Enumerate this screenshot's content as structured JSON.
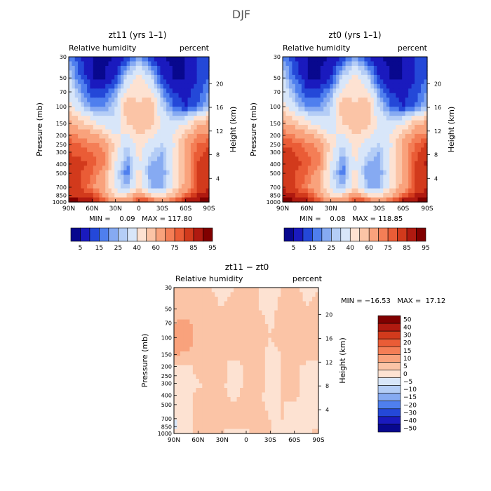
{
  "figure": {
    "title": "DJF"
  },
  "colors": {
    "cb_full": [
      "#08088e",
      "#1a1abe",
      "#2448d8",
      "#4f7fee",
      "#86aaf2",
      "#b4cdf6",
      "#d8e6f9",
      "#fde2d2",
      "#fbc4a6",
      "#f9a27c",
      "#f47e56",
      "#ea5c36",
      "#d23a1c",
      "#b01a10",
      "#800000"
    ],
    "cb_diff": [
      "#800000",
      "#b01a10",
      "#d23a1c",
      "#ea5c36",
      "#f47e56",
      "#f9a27c",
      "#fbc4a6",
      "#fde2d2",
      "#d8e6f9",
      "#b4cdf6",
      "#86aaf2",
      "#4f7fee",
      "#2448d8",
      "#1a1abe",
      "#08088e"
    ]
  },
  "panels": {
    "zt11": {
      "title": "zt11 (yrs 1–1)",
      "variable_label": "Relative humidity",
      "units_label": "percent",
      "stats_label": "MIN =    0.09   MAX = 117.80"
    },
    "zt0": {
      "title": "zt0 (yrs 1–1)",
      "variable_label": "Relative humidity",
      "units_label": "percent",
      "stats_label": "MIN =    0.08   MAX = 118.85"
    },
    "diff": {
      "title": "zt11 − zt0",
      "variable_label": "Relative humidity",
      "units_label": "percent",
      "stats_label": "MIN = −16.53   MAX =  17.12"
    }
  },
  "axes": {
    "ylabel": "Pressure (mb)",
    "y2label": "Height (km)",
    "xticks": [
      "90N",
      "60N",
      "30N",
      "0",
      "30S",
      "60S",
      "90S"
    ],
    "yticks": [
      "30",
      "50",
      "70",
      "100",
      "150",
      "200",
      "250",
      "300",
      "400",
      "500",
      "700",
      "850",
      "1000"
    ],
    "heightticks": [
      "20",
      "16",
      "12",
      "8",
      "4"
    ]
  },
  "colorbars": {
    "full_labels": [
      "5",
      "15",
      "25",
      "40",
      "60",
      "75",
      "85",
      "95"
    ],
    "diff_labels": [
      "50",
      "40",
      "30",
      "20",
      "15",
      "10",
      "5",
      "0",
      "−5",
      "−10",
      "−15",
      "−20",
      "−30",
      "−40",
      "−50"
    ]
  },
  "chart_data": [
    {
      "type": "heatmap",
      "title": "zt11 (yrs 1–1)",
      "subtitle": "Relative humidity",
      "units": "percent",
      "ylabel": "Pressure (mb)",
      "y2label": "Height (km)",
      "x_ticks": [
        "90N",
        "60N",
        "30N",
        "0",
        "30S",
        "60S",
        "90S"
      ],
      "y_ticks": [
        30,
        50,
        70,
        100,
        150,
        200,
        250,
        300,
        400,
        500,
        700,
        850,
        1000
      ],
      "y_scale": "log-pressure (reversed)",
      "height_ticks_km": [
        20,
        16,
        12,
        8,
        4
      ],
      "xlim": [
        90,
        -90
      ],
      "ylim": [
        1000,
        30
      ],
      "min": 0.09,
      "max": 117.8,
      "colorbar_levels": [
        5,
        10,
        15,
        20,
        25,
        30,
        40,
        50,
        60,
        70,
        75,
        80,
        85,
        90,
        95
      ],
      "colorbar_labels": [
        5,
        15,
        25,
        40,
        60,
        75,
        85,
        95
      ],
      "x": [
        90,
        75,
        60,
        45,
        30,
        15,
        0,
        -15,
        -30,
        -45,
        -60,
        -75,
        -90
      ],
      "y": [
        30,
        50,
        100,
        150,
        200,
        250,
        300,
        400,
        500,
        700,
        850,
        1000
      ],
      "z": [
        [
          20,
          10,
          5,
          3,
          5,
          10,
          20,
          10,
          5,
          3,
          5,
          10,
          15
        ],
        [
          30,
          15,
          5,
          5,
          10,
          30,
          45,
          30,
          10,
          5,
          5,
          10,
          15
        ],
        [
          45,
          30,
          20,
          20,
          30,
          60,
          50,
          60,
          30,
          15,
          10,
          15,
          25
        ],
        [
          65,
          55,
          45,
          35,
          30,
          50,
          55,
          55,
          35,
          35,
          40,
          55,
          65
        ],
        [
          72,
          68,
          65,
          55,
          40,
          40,
          50,
          45,
          35,
          40,
          55,
          70,
          70
        ],
        [
          78,
          75,
          72,
          68,
          45,
          30,
          45,
          35,
          30,
          40,
          65,
          75,
          80
        ],
        [
          80,
          78,
          75,
          70,
          45,
          25,
          45,
          30,
          25,
          40,
          65,
          78,
          82
        ],
        [
          82,
          82,
          78,
          70,
          40,
          20,
          40,
          25,
          22,
          40,
          65,
          80,
          85
        ],
        [
          82,
          80,
          75,
          65,
          35,
          15,
          45,
          20,
          20,
          40,
          60,
          80,
          85
        ],
        [
          82,
          80,
          72,
          60,
          35,
          25,
          50,
          25,
          25,
          45,
          65,
          80,
          85
        ],
        [
          85,
          85,
          82,
          70,
          50,
          50,
          70,
          50,
          45,
          60,
          75,
          85,
          88
        ],
        [
          95,
          92,
          88,
          80,
          65,
          70,
          85,
          85,
          75,
          80,
          90,
          92,
          95
        ]
      ]
    },
    {
      "type": "heatmap",
      "title": "zt0 (yrs 1–1)",
      "subtitle": "Relative humidity",
      "units": "percent",
      "ylabel": "Pressure (mb)",
      "y2label": "Height (km)",
      "x_ticks": [
        "90N",
        "60N",
        "30N",
        "0",
        "30S",
        "60S",
        "90S"
      ],
      "y_ticks": [
        30,
        50,
        70,
        100,
        150,
        200,
        250,
        300,
        400,
        500,
        700,
        850,
        1000
      ],
      "y_scale": "log-pressure (reversed)",
      "height_ticks_km": [
        20,
        16,
        12,
        8,
        4
      ],
      "xlim": [
        90,
        -90
      ],
      "ylim": [
        1000,
        30
      ],
      "min": 0.08,
      "max": 118.85,
      "colorbar_levels": [
        5,
        10,
        15,
        20,
        25,
        30,
        40,
        50,
        60,
        70,
        75,
        80,
        85,
        90,
        95
      ],
      "colorbar_labels": [
        5,
        15,
        25,
        40,
        60,
        75,
        85,
        95
      ],
      "x": [
        90,
        75,
        60,
        45,
        30,
        15,
        0,
        -15,
        -30,
        -45,
        -60,
        -75,
        -90
      ],
      "y": [
        30,
        50,
        100,
        150,
        200,
        250,
        300,
        400,
        500,
        700,
        850,
        1000
      ],
      "z": [
        [
          20,
          10,
          5,
          3,
          5,
          10,
          20,
          10,
          5,
          3,
          5,
          10,
          15
        ],
        [
          30,
          15,
          5,
          5,
          10,
          30,
          45,
          30,
          10,
          5,
          5,
          10,
          15
        ],
        [
          45,
          30,
          20,
          20,
          30,
          60,
          50,
          60,
          30,
          15,
          10,
          15,
          25
        ],
        [
          65,
          55,
          45,
          35,
          30,
          50,
          55,
          55,
          35,
          35,
          40,
          55,
          65
        ],
        [
          75,
          70,
          65,
          55,
          40,
          40,
          50,
          45,
          35,
          40,
          55,
          70,
          72
        ],
        [
          80,
          78,
          72,
          68,
          45,
          30,
          45,
          35,
          30,
          40,
          65,
          75,
          82
        ],
        [
          82,
          80,
          75,
          70,
          45,
          25,
          45,
          30,
          25,
          40,
          65,
          78,
          84
        ],
        [
          84,
          82,
          78,
          70,
          40,
          18,
          40,
          25,
          22,
          40,
          65,
          80,
          86
        ],
        [
          84,
          80,
          75,
          65,
          35,
          15,
          45,
          20,
          20,
          40,
          60,
          80,
          85
        ],
        [
          84,
          80,
          72,
          60,
          35,
          25,
          50,
          25,
          25,
          45,
          65,
          80,
          85
        ],
        [
          88,
          85,
          82,
          70,
          50,
          50,
          70,
          50,
          45,
          60,
          75,
          85,
          88
        ],
        [
          96,
          92,
          88,
          80,
          65,
          70,
          85,
          85,
          75,
          80,
          90,
          92,
          95
        ]
      ]
    },
    {
      "type": "heatmap",
      "title": "zt11 − zt0",
      "subtitle": "Relative humidity",
      "units": "percent",
      "ylabel": "Pressure (mb)",
      "y2label": "Height (km)",
      "x_ticks": [
        "90N",
        "60N",
        "30N",
        "0",
        "30S",
        "60S",
        "90S"
      ],
      "y_ticks": [
        30,
        50,
        70,
        100,
        150,
        200,
        250,
        300,
        400,
        500,
        700,
        850,
        1000
      ],
      "y_scale": "log-pressure (reversed)",
      "height_ticks_km": [
        20,
        16,
        12,
        8,
        4
      ],
      "xlim": [
        90,
        -90
      ],
      "ylim": [
        1000,
        30
      ],
      "min": -16.53,
      "max": 17.12,
      "colorbar_levels": [
        -50,
        -40,
        -30,
        -20,
        -15,
        -10,
        -5,
        0,
        5,
        10,
        15,
        20,
        30,
        40,
        50
      ],
      "colorbar_labels": [
        50,
        40,
        30,
        20,
        15,
        10,
        5,
        0,
        -5,
        -10,
        -15,
        -20,
        -30,
        -40,
        -50
      ],
      "x": [
        90,
        75,
        60,
        45,
        30,
        15,
        0,
        -15,
        -30,
        -45,
        -60,
        -75,
        -90
      ],
      "y": [
        30,
        50,
        100,
        150,
        200,
        250,
        300,
        400,
        500,
        700,
        850,
        1000
      ],
      "z": [
        [
          1,
          2,
          1,
          0,
          -1,
          0,
          1,
          0,
          -1,
          0,
          1,
          -1,
          0
        ],
        [
          2,
          3,
          1,
          1,
          0,
          1,
          1,
          0,
          -1,
          1,
          2,
          0,
          1
        ],
        [
          8,
          10,
          3,
          2,
          1,
          2,
          1,
          2,
          0,
          1,
          3,
          1,
          2
        ],
        [
          6,
          4,
          2,
          1,
          2,
          1,
          2,
          1,
          -1,
          0,
          1,
          2,
          3
        ],
        [
          -2,
          -1,
          1,
          2,
          1,
          -2,
          1,
          2,
          -1,
          0,
          1,
          -1,
          -2
        ],
        [
          -3,
          -2,
          1,
          1,
          2,
          -2,
          1,
          2,
          -1,
          0,
          1,
          -1,
          -2
        ],
        [
          -3,
          -2,
          -1,
          2,
          1,
          -3,
          1,
          2,
          -1,
          0,
          1,
          -2,
          -1
        ],
        [
          -4,
          -2,
          1,
          2,
          1,
          -1,
          2,
          1,
          -2,
          0,
          1,
          -1,
          -2
        ],
        [
          -3,
          -1,
          1,
          2,
          2,
          0,
          2,
          1,
          -1,
          0,
          -1,
          0,
          -1
        ],
        [
          -5,
          -2,
          1,
          1,
          2,
          0,
          1,
          1,
          0,
          0,
          -1,
          0,
          -1
        ],
        [
          -6,
          -3,
          2,
          1,
          1,
          0,
          1,
          1,
          0,
          -2,
          -1,
          0,
          0
        ],
        [
          -4,
          -2,
          1,
          1,
          0,
          -2,
          -1,
          1,
          0,
          -1,
          -2,
          -1,
          1
        ]
      ]
    }
  ]
}
